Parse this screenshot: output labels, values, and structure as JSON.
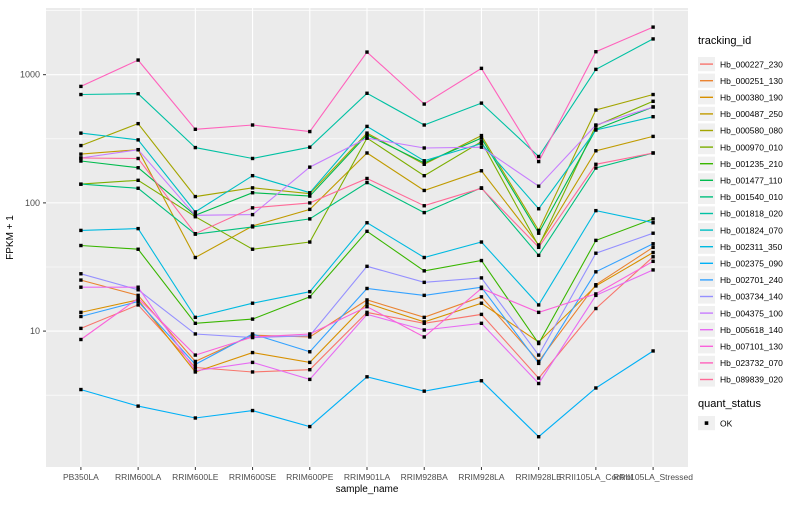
{
  "chart_data": {
    "type": "line",
    "title": "",
    "xlabel": "sample_name",
    "ylabel": "FPKM + 1",
    "y_scale": "log10",
    "y_ticks": [
      10,
      100,
      1000
    ],
    "y_minor_log": [
      0.5,
      1.5,
      2.5,
      3.5
    ],
    "ylim_log": [
      -0.06,
      3.52
    ],
    "grid": "on",
    "panel_bg": "#EBEBEB",
    "grid_color": "#FFFFFF",
    "tick_label_color": "#4D4D4D",
    "axis_title_color": "#000000",
    "point_color": "#000000",
    "legend_position": "right",
    "legend_title": "tracking_id",
    "legend2": {
      "title": "quant_status",
      "items": [
        "OK"
      ]
    },
    "x_categories": [
      "PB350LA",
      "RRIM600LA",
      "RRIM600LE",
      "RRIM600SE",
      "RRIM600PE",
      "RRIM901LA",
      "RRIM928BA",
      "RRIM928LA",
      "RRIM928LE",
      "RRII105LA_Control",
      "RRII105LA_Stressed"
    ],
    "series": [
      {
        "name": "Hb_000227_230",
        "color": "#F8766D",
        "values": [
          10.5,
          16,
          5.2,
          4.8,
          5.0,
          14,
          11.5,
          13.5,
          4.3,
          15,
          38
        ]
      },
      {
        "name": "Hb_000251_130",
        "color": "#EA8331",
        "values": [
          25,
          19,
          5.8,
          9.3,
          9.0,
          17.5,
          12.8,
          18.5,
          5.8,
          23,
          45
        ]
      },
      {
        "name": "Hb_000380_190",
        "color": "#D89000",
        "values": [
          14,
          17.5,
          4.8,
          6.8,
          5.7,
          16.5,
          11.8,
          16.5,
          8.2,
          22.5,
          41
        ]
      },
      {
        "name": "Hb_000487_250",
        "color": "#C09B00",
        "values": [
          240,
          260,
          37.5,
          66,
          89,
          245,
          125,
          178,
          47,
          255,
          330
        ]
      },
      {
        "name": "Hb_000580_080",
        "color": "#A3A500",
        "values": [
          280,
          415,
          112,
          131,
          118,
          350,
          200,
          335,
          61,
          530,
          700
        ]
      },
      {
        "name": "Hb_000970_010",
        "color": "#7CAE00",
        "values": [
          140,
          150,
          78,
          43.5,
          49.5,
          320,
          163,
          300,
          46,
          400,
          620
        ]
      },
      {
        "name": "Hb_001235_210",
        "color": "#39B600",
        "values": [
          46.5,
          43.5,
          11.5,
          12.4,
          18.5,
          60,
          29.5,
          35.5,
          8.0,
          51,
          75
        ]
      },
      {
        "name": "Hb_001477_110",
        "color": "#00BB4E",
        "values": [
          212,
          188,
          80,
          120,
          113,
          340,
          205,
          320,
          58,
          375,
          560
        ]
      },
      {
        "name": "Hb_001540_010",
        "color": "#00BF7D",
        "values": [
          140,
          130,
          57,
          65,
          75,
          144,
          84,
          131,
          39,
          187,
          245
        ]
      },
      {
        "name": "Hb_001818_020",
        "color": "#00C1A3",
        "values": [
          700,
          710,
          270,
          222,
          272,
          716,
          405,
          600,
          230,
          1100,
          1900
        ]
      },
      {
        "name": "Hb_001824_070",
        "color": "#00BFC4",
        "values": [
          350,
          310,
          85,
          163,
          120,
          395,
          213,
          290,
          90,
          370,
          470
        ]
      },
      {
        "name": "Hb_002311_350",
        "color": "#00BAE0",
        "values": [
          61,
          63,
          12.8,
          16.5,
          20.3,
          70,
          37.5,
          49.5,
          16,
          87,
          70
        ]
      },
      {
        "name": "Hb_002375_090",
        "color": "#00B0F6",
        "values": [
          3.5,
          2.6,
          2.1,
          2.4,
          1.8,
          4.4,
          3.4,
          4.1,
          1.5,
          3.6,
          7
        ]
      },
      {
        "name": "Hb_002701_240",
        "color": "#35A2FF",
        "values": [
          13,
          17,
          5.5,
          9.5,
          6.9,
          21.5,
          19,
          22,
          5.6,
          29,
          48
        ]
      },
      {
        "name": "Hb_003734_140",
        "color": "#9590FF",
        "values": [
          28,
          21,
          9.5,
          8.9,
          9.2,
          32,
          24,
          26,
          6.5,
          40.5,
          58
        ]
      },
      {
        "name": "Hb_004375_100",
        "color": "#C77CFF",
        "values": [
          224,
          260,
          80,
          81,
          190,
          320,
          268,
          272,
          135,
          405,
          560
        ]
      },
      {
        "name": "Hb_005618_140",
        "color": "#E76BF3",
        "values": [
          22,
          22,
          4.9,
          5.7,
          4.2,
          13.5,
          10.2,
          11.5,
          3.9,
          19,
          30
        ]
      },
      {
        "name": "Hb_007101_130",
        "color": "#FA62DB",
        "values": [
          8.6,
          18,
          6.5,
          9.0,
          9.5,
          15.5,
          9.0,
          21.5,
          14,
          19.5,
          35
        ]
      },
      {
        "name": "Hb_023732_070",
        "color": "#FF62BC",
        "values": [
          810,
          1300,
          375,
          405,
          360,
          1500,
          590,
          1120,
          210,
          1510,
          2350
        ]
      },
      {
        "name": "Hb_089839_020",
        "color": "#FF6A98",
        "values": [
          224,
          222,
          57.5,
          91.5,
          100,
          155,
          95,
          130,
          45,
          200,
          245
        ]
      }
    ]
  },
  "layout_note_values_visible_only": true
}
